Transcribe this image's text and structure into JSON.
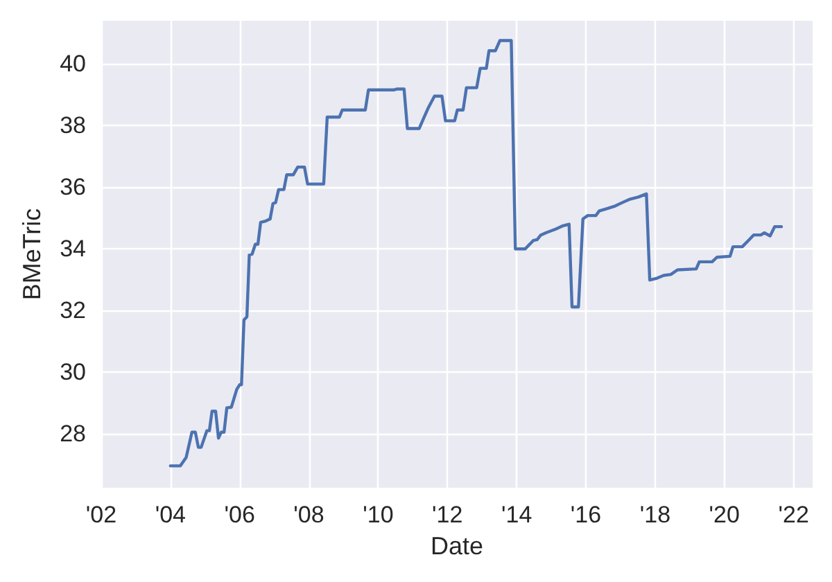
{
  "chart_data": {
    "type": "line",
    "xlabel": "Date",
    "ylabel": "BMeTric",
    "color": "#4c72b0",
    "x": [
      "2004-01-01",
      "2004-04-15",
      "2004-06-15",
      "2004-08-15",
      "2004-09-20",
      "2004-10-22",
      "2004-11-20",
      "2005-01-20",
      "2005-02-15",
      "2005-03-15",
      "2005-04-22",
      "2005-05-22",
      "2005-06-20",
      "2005-07-20",
      "2005-08-18",
      "2005-10-05",
      "2005-12-01",
      "2006-01-01",
      "2006-01-20",
      "2006-02-15",
      "2006-03-18",
      "2006-04-12",
      "2006-05-12",
      "2006-06-15",
      "2006-07-12",
      "2006-08-10",
      "2006-10-01",
      "2006-11-18",
      "2006-12-18",
      "2007-01-15",
      "2007-02-15",
      "2007-04-12",
      "2007-05-12",
      "2007-07-20",
      "2007-09-05",
      "2007-11-15",
      "2007-12-18",
      "2008-06-05",
      "2008-07-12",
      "2008-11-18",
      "2008-12-18",
      "2009-08-18",
      "2009-09-20",
      "2010-06-15",
      "2010-07-20",
      "2010-10-01",
      "2010-11-05",
      "2011-03-10",
      "2011-04-25",
      "2011-06-15",
      "2011-08-18",
      "2011-11-05",
      "2011-12-12",
      "2012-03-18",
      "2012-04-15",
      "2012-06-15",
      "2012-07-20",
      "2012-11-05",
      "2012-12-12",
      "2013-02-15",
      "2013-03-15",
      "2013-05-22",
      "2013-07-08",
      "2013-11-05",
      "2013-12-18",
      "2014-04-01",
      "2014-06-25",
      "2014-08-05",
      "2014-09-10",
      "2014-11-05",
      "2015-02-15",
      "2015-04-28",
      "2015-07-08",
      "2015-08-08",
      "2015-10-15",
      "2015-12-01",
      "2016-01-20",
      "2016-04-15",
      "2016-05-22",
      "2016-08-05",
      "2016-11-05",
      "2017-01-20",
      "2017-04-01",
      "2017-07-08",
      "2017-10-01",
      "2017-11-05",
      "2018-01-20",
      "2018-04-01",
      "2018-06-15",
      "2018-08-25",
      "2019-03-10",
      "2019-04-12",
      "2019-08-25",
      "2019-10-15",
      "2020-03-01",
      "2020-04-01",
      "2020-07-08",
      "2020-09-10",
      "2020-11-05",
      "2021-01-20",
      "2021-02-25",
      "2021-04-28",
      "2021-06-15",
      "2021-08-25"
    ],
    "values": [
      26.97,
      26.97,
      27.24,
      28.06,
      28.06,
      27.57,
      27.57,
      28.11,
      28.11,
      28.74,
      28.74,
      27.87,
      28.06,
      28.06,
      28.85,
      28.87,
      29.45,
      29.6,
      29.6,
      31.7,
      31.8,
      33.8,
      33.83,
      34.15,
      34.15,
      34.86,
      34.9,
      34.97,
      35.47,
      35.5,
      35.92,
      35.92,
      36.4,
      36.4,
      36.65,
      36.65,
      36.1,
      36.1,
      38.27,
      38.27,
      38.5,
      38.5,
      39.15,
      39.15,
      39.18,
      39.18,
      37.9,
      37.9,
      38.23,
      38.58,
      38.95,
      38.95,
      38.15,
      38.15,
      38.5,
      38.5,
      39.22,
      39.22,
      39.85,
      39.85,
      40.42,
      40.42,
      40.75,
      40.75,
      34.0,
      34.0,
      34.27,
      34.3,
      34.44,
      34.52,
      34.64,
      34.74,
      34.8,
      32.12,
      32.12,
      34.97,
      35.08,
      35.08,
      35.23,
      35.3,
      35.39,
      35.5,
      35.6,
      35.68,
      35.78,
      32.99,
      33.05,
      33.14,
      33.17,
      33.32,
      33.35,
      33.58,
      33.58,
      33.73,
      33.76,
      34.07,
      34.07,
      34.27,
      34.45,
      34.45,
      34.52,
      34.42,
      34.72,
      34.72
    ],
    "xlim": [
      "2002-01-01",
      "2022-07-20"
    ],
    "ylim": [
      26.26,
      41.39
    ],
    "xticks": [
      {
        "value": "2002-01-01",
        "label": "'02"
      },
      {
        "value": "2004-01-01",
        "label": "'04"
      },
      {
        "value": "2006-01-01",
        "label": "'06"
      },
      {
        "value": "2008-01-01",
        "label": "'08"
      },
      {
        "value": "2010-01-01",
        "label": "'10"
      },
      {
        "value": "2012-01-01",
        "label": "'12"
      },
      {
        "value": "2014-01-01",
        "label": "'14"
      },
      {
        "value": "2016-01-01",
        "label": "'16"
      },
      {
        "value": "2018-01-01",
        "label": "'18"
      },
      {
        "value": "2020-01-01",
        "label": "'20"
      },
      {
        "value": "2022-01-01",
        "label": "'22"
      }
    ],
    "yticks": [
      28,
      30,
      32,
      34,
      36,
      38,
      40
    ],
    "grid": true
  }
}
